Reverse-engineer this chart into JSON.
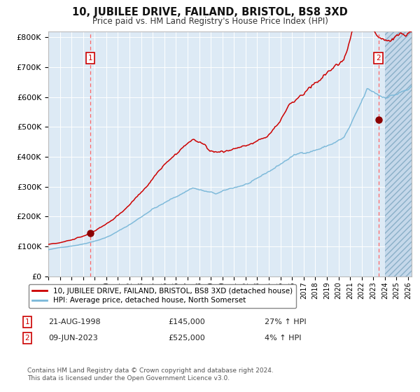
{
  "title": "10, JUBILEE DRIVE, FAILAND, BRISTOL, BS8 3XD",
  "subtitle": "Price paid vs. HM Land Registry's House Price Index (HPI)",
  "legend_line1": "10, JUBILEE DRIVE, FAILAND, BRISTOL, BS8 3XD (detached house)",
  "legend_line2": "HPI: Average price, detached house, North Somerset",
  "annotation1_date": "21-AUG-1998",
  "annotation1_price": "£145,000",
  "annotation1_hpi": "27% ↑ HPI",
  "annotation1_year": 1998.63,
  "annotation1_value": 145000,
  "annotation2_date": "09-JUN-2023",
  "annotation2_price": "£525,000",
  "annotation2_hpi": "4% ↑ HPI",
  "annotation2_year": 2023.44,
  "annotation2_value": 525000,
  "hpi_color": "#7ab8d9",
  "price_color": "#cc0000",
  "dot_color": "#8b0000",
  "vline_color": "#ff6666",
  "bg_color": "#ddeaf5",
  "footer": "Contains HM Land Registry data © Crown copyright and database right 2024.\nThis data is licensed under the Open Government Licence v3.0.",
  "xmin": 1995.0,
  "xmax": 2026.3,
  "ymin": 0,
  "ymax": 820000,
  "hatch_start": 2024.0
}
